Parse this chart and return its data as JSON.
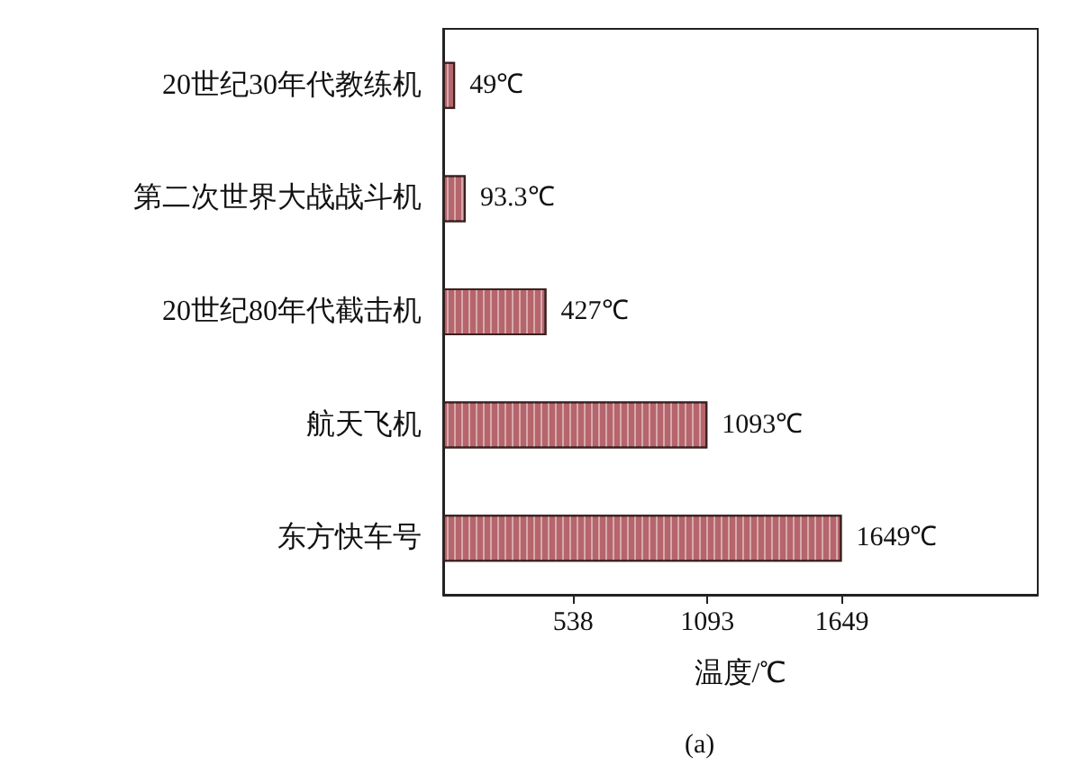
{
  "chart_data": {
    "type": "bar",
    "orientation": "horizontal",
    "xlabel": "温度/℃",
    "categories": [
      "20世纪30年代教练机",
      "第二次世界大战战斗机",
      "20世纪80年代截击机",
      "航天飞机",
      "东方快车号"
    ],
    "values": [
      49,
      93.3,
      427,
      1093,
      1649
    ],
    "value_labels": [
      "49℃",
      "93.3℃",
      "427℃",
      "1093℃",
      "1649℃"
    ],
    "color": "#b5656b",
    "xlim": [
      0,
      2460
    ],
    "xticks": [
      538,
      1093,
      1649
    ],
    "annotations": [
      "(a)"
    ]
  }
}
